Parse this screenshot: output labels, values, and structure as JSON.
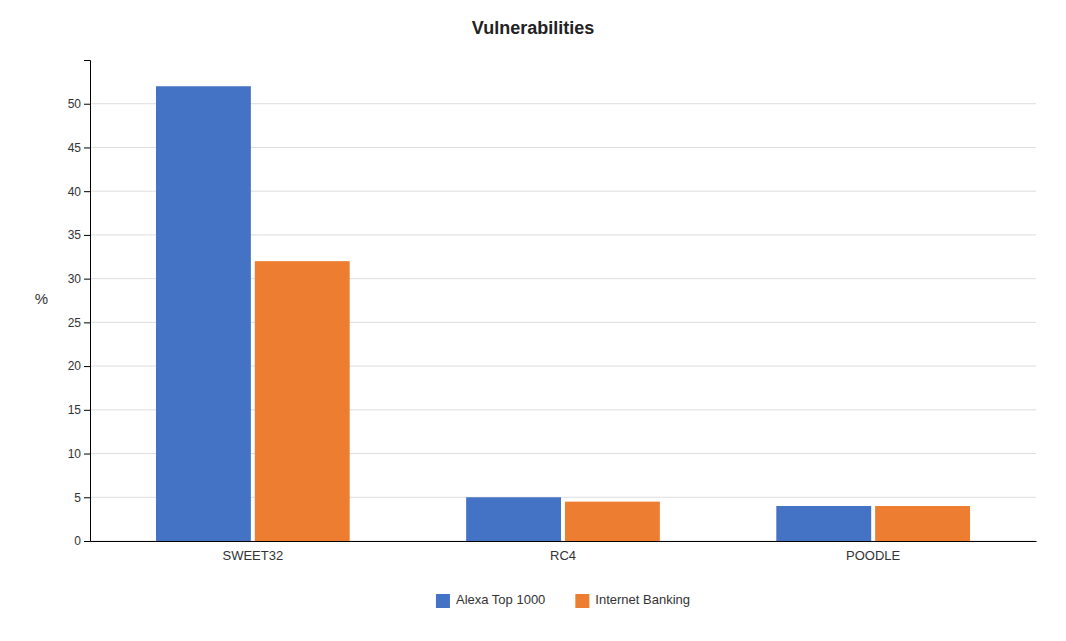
{
  "chart_data": {
    "type": "bar",
    "title": "Vulnerabilities",
    "categories": [
      "SWEET32",
      "RC4",
      "POODLE"
    ],
    "series": [
      {
        "name": "Alexa Top 1000",
        "color": "#4472C4",
        "values": [
          52,
          5,
          4
        ]
      },
      {
        "name": "Internet Banking",
        "color": "#ED7D31",
        "values": [
          32,
          4.5,
          4
        ]
      }
    ],
    "ylabel": "%",
    "ylim": [
      0,
      55
    ],
    "yticks": [
      0,
      5,
      10,
      15,
      20,
      25,
      30,
      35,
      40,
      45,
      50
    ],
    "grid": true,
    "legend": "bottom"
  }
}
